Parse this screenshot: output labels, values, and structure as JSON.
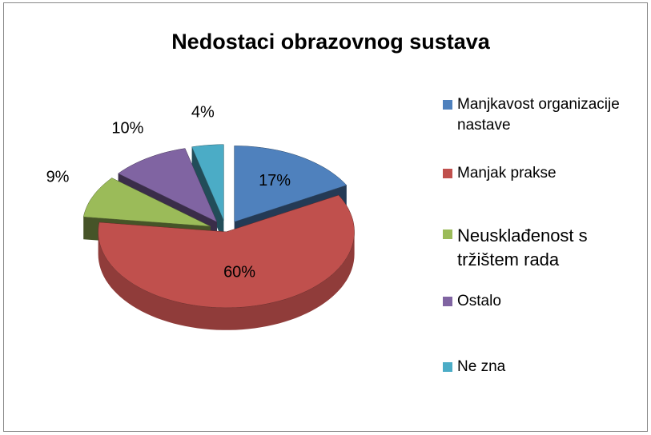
{
  "chart_data": {
    "type": "pie",
    "title": "Nedostaci obrazovnog sustava",
    "categories": [
      "Manjkavost organizacije nastave",
      "Manjak prakse",
      "Neusklađenost s tržištem rada",
      "Ostalo",
      "Ne zna"
    ],
    "values": [
      17,
      60,
      9,
      10,
      4
    ],
    "value_labels": [
      "17%",
      "60%",
      "9%",
      "10%",
      "4%"
    ],
    "colors": [
      "#4f81bd",
      "#c0504d",
      "#9bbb59",
      "#8064a2",
      "#4bacc6"
    ],
    "legend": "right"
  }
}
